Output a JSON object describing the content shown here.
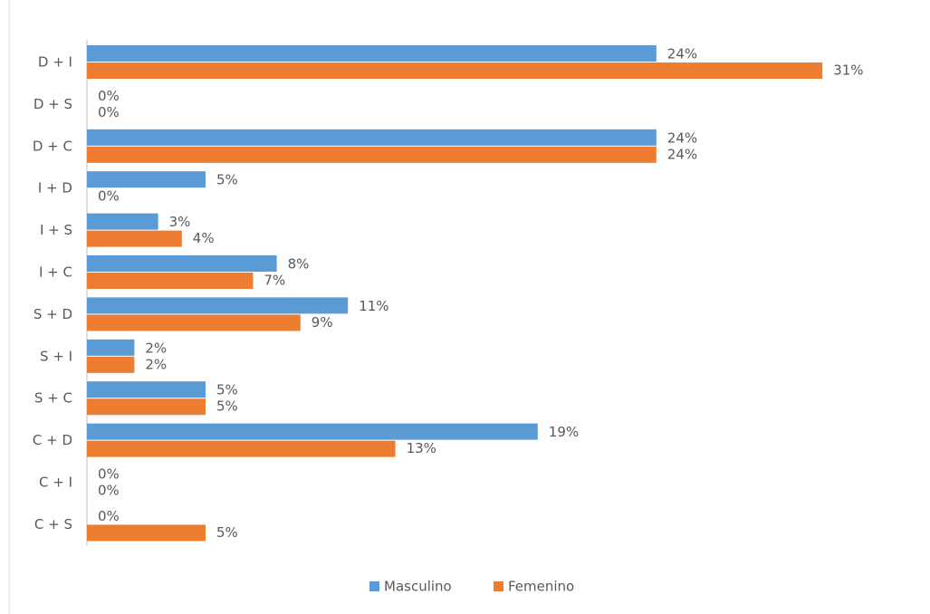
{
  "chart_data": {
    "type": "bar",
    "orientation": "horizontal",
    "categories": [
      "D + I",
      "D + S",
      "D + C",
      "I + D",
      "I + S",
      "I + C",
      "S + D",
      "S + I",
      "S + C",
      "C + D",
      "C + I",
      "C + S"
    ],
    "series": [
      {
        "name": "Masculino",
        "color": "#5b9bd5",
        "values": [
          24,
          0,
          24,
          5,
          3,
          8,
          11,
          2,
          5,
          19,
          0,
          0
        ],
        "value_labels": [
          "24%",
          "0%",
          "24%",
          "5%",
          "3%",
          "8%",
          "11%",
          "2%",
          "5%",
          "19%",
          "0%",
          "0%"
        ]
      },
      {
        "name": "Femenino",
        "color": "#ed7d31",
        "values": [
          31,
          0,
          24,
          0,
          4,
          7,
          9,
          2,
          5,
          13,
          0,
          5
        ],
        "value_labels": [
          "31%",
          "0%",
          "24%",
          "0%",
          "4%",
          "7%",
          "9%",
          "2%",
          "5%",
          "13%",
          "0%",
          "5%"
        ]
      }
    ],
    "legend": "bottom"
  }
}
